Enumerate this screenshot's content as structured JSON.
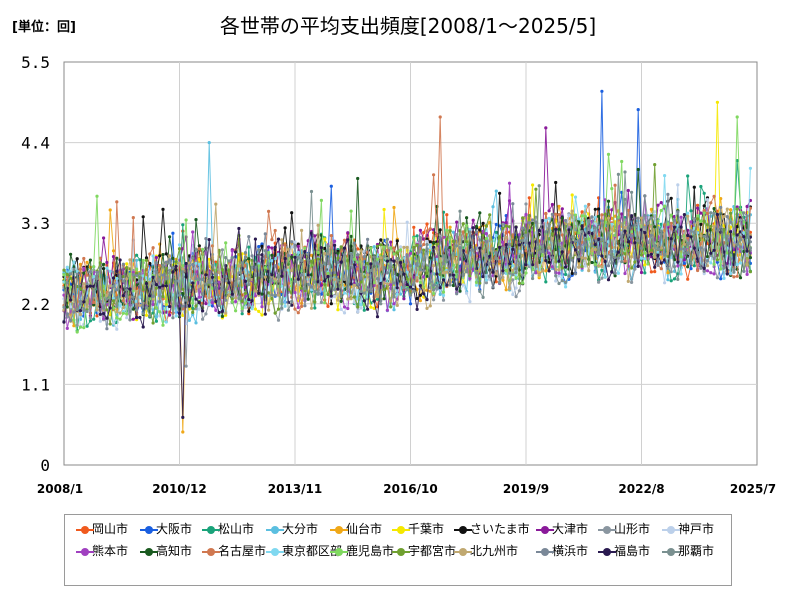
{
  "chart_data": {
    "type": "line",
    "title": "各世帯の平均支出頻度[2008/1～2025/5]",
    "unit_label": "[単位：回]",
    "x_tick_labels": [
      "2008/1",
      "2010/12",
      "2013/11",
      "2016/10",
      "2019/9",
      "2022/8",
      "2025/7"
    ],
    "x_range": [
      "2008-01",
      "2025-07"
    ],
    "y_ticks": [
      "0",
      "1.1",
      "2.2",
      "3.3",
      "4.4",
      "5.5"
    ],
    "ylim": [
      0,
      5.5
    ],
    "grid": true,
    "legend_position": "bottom",
    "series_names": [
      "岡山市",
      "大阪市",
      "松山市",
      "大分市",
      "仙台市",
      "千葉市",
      "さいたま市",
      "大津市",
      "山形市",
      "神戸市",
      "熊本市",
      "高知市",
      "名古屋市",
      "東京都区部",
      "鹿児島市",
      "宇都宮市",
      "北九州市",
      "横浜市",
      "福島市",
      "那覇市"
    ],
    "series_colors": [
      "#f05a1e",
      "#1a5fe0",
      "#1aa37a",
      "#5bbfe0",
      "#f0a818",
      "#f5e800",
      "#111111",
      "#8a1a9a",
      "#8a96a0",
      "#bcd0ea",
      "#a040c0",
      "#1a5a20",
      "#d07850",
      "#80d8f0",
      "#80d860",
      "#70a030",
      "#c0a870",
      "#7a8898",
      "#2a1a50",
      "#7a9090"
    ],
    "series_base": [
      2.5,
      2.45,
      2.4,
      2.45,
      2.55,
      2.45,
      2.55,
      2.6,
      2.35,
      2.3,
      2.4,
      2.5,
      2.55,
      2.35,
      2.45,
      2.5,
      2.4,
      2.45,
      2.4,
      2.35
    ],
    "trend_points": [
      {
        "x": "2008-01",
        "y": 2.3
      },
      {
        "x": "2010-12",
        "y": 2.45
      },
      {
        "x": "2013-11",
        "y": 2.6
      },
      {
        "x": "2016-10",
        "y": 2.6
      },
      {
        "x": "2018-01",
        "y": 2.85
      },
      {
        "x": "2019-09",
        "y": 2.9
      },
      {
        "x": "2021-01",
        "y": 3.05
      },
      {
        "x": "2022-08",
        "y": 3.05
      },
      {
        "x": "2025-05",
        "y": 3.05
      }
    ],
    "notable_points": [
      {
        "series": "大阪市",
        "x": "2021-08",
        "y": 5.1
      },
      {
        "series": "千葉市",
        "x": "2024-07",
        "y": 4.95
      },
      {
        "series": "鹿児島市",
        "x": "2025-01",
        "y": 4.75
      },
      {
        "series": "大阪市",
        "x": "2022-07",
        "y": 4.85
      },
      {
        "series": "名古屋市",
        "x": "2017-07",
        "y": 4.75
      },
      {
        "series": "大津市",
        "x": "2020-03",
        "y": 4.6
      },
      {
        "series": "大分市",
        "x": "2011-09",
        "y": 4.4
      },
      {
        "series": "仙台市",
        "x": "2011-01",
        "y": 0.45
      },
      {
        "series": "福島市",
        "x": "2011-01",
        "y": 0.65
      },
      {
        "series": "山形市",
        "x": "2011-02",
        "y": 1.35
      }
    ]
  }
}
